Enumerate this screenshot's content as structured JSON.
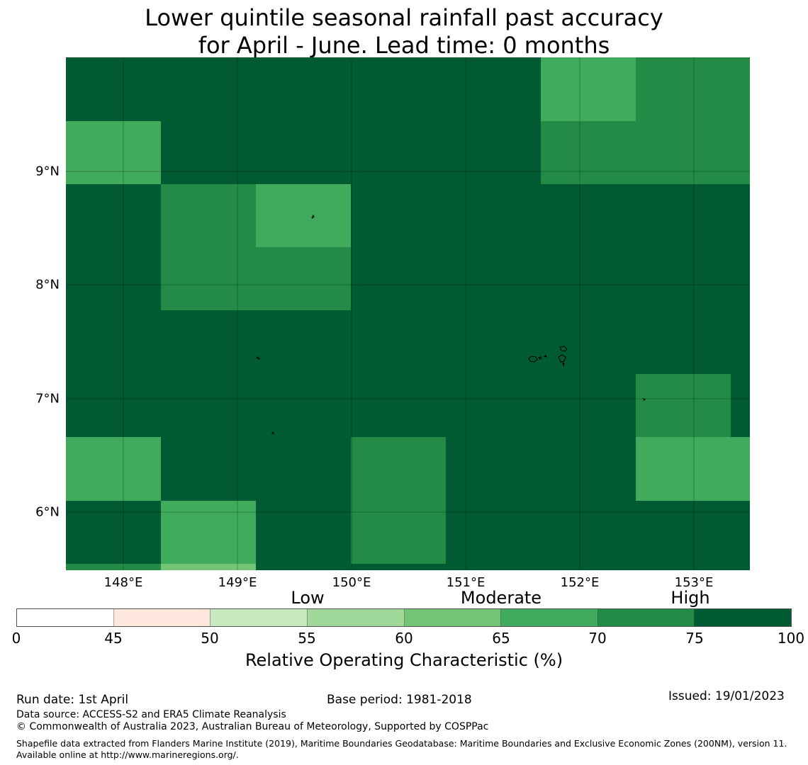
{
  "title": {
    "line1": "Lower quintile seasonal rainfall past accuracy",
    "line2": "for April - June. Lead time: 0 months"
  },
  "map": {
    "lon_labels": [
      "148°E",
      "149°E",
      "150°E",
      "151°E",
      "152°E",
      "153°E"
    ],
    "lat_labels": [
      "9°N",
      "8°N",
      "7°N",
      "6°N"
    ],
    "cells_description": "Grid of rainfall accuracy cells; values in percent ROC",
    "cell_values": [
      [
        80,
        80,
        80,
        80,
        80,
        68,
        72,
        72
      ],
      [
        68,
        80,
        80,
        80,
        80,
        72,
        72,
        72
      ],
      [
        80,
        72,
        68,
        80,
        80,
        80,
        80,
        80
      ],
      [
        80,
        72,
        72,
        80,
        80,
        80,
        80,
        80
      ],
      [
        80,
        80,
        80,
        80,
        80,
        80,
        80,
        80
      ],
      [
        80,
        80,
        80,
        80,
        80,
        80,
        72,
        80
      ],
      [
        68,
        80,
        80,
        72,
        80,
        80,
        68,
        68
      ],
      [
        80,
        68,
        80,
        72,
        80,
        80,
        80,
        80
      ]
    ]
  },
  "colorbar": {
    "category_labels": [
      "Low",
      "Moderate",
      "High"
    ],
    "ticks": [
      "0",
      "45",
      "50",
      "55",
      "60",
      "65",
      "70",
      "75",
      "100"
    ],
    "colors": [
      "#ffffff",
      "#fee8de",
      "#c7e9c0",
      "#a1d99b",
      "#74c476",
      "#41ab5d",
      "#238b45",
      "#005a32"
    ],
    "label": "Relative Operating Characteristic (%)"
  },
  "footer": {
    "run_date": "Run date: 1st April",
    "base_period": "Base period: 1981-2018",
    "issued": "Issued: 19/01/2023",
    "data_source": "Data source: ACCESS-S2 and ERA5 Climate Reanalysis",
    "copyright": "© Commonwealth of Australia 2023, Australian Bureau of Meteorology, Supported by COSPPac",
    "shapefile": "Shapefile data extracted from Flanders Marine Institute (2019), Maritime Boundaries Geodatabase: Maritime Boundaries and Exclusive Economic Zones (200NM), version 11. Available online at http://www.marineregions.org/."
  }
}
